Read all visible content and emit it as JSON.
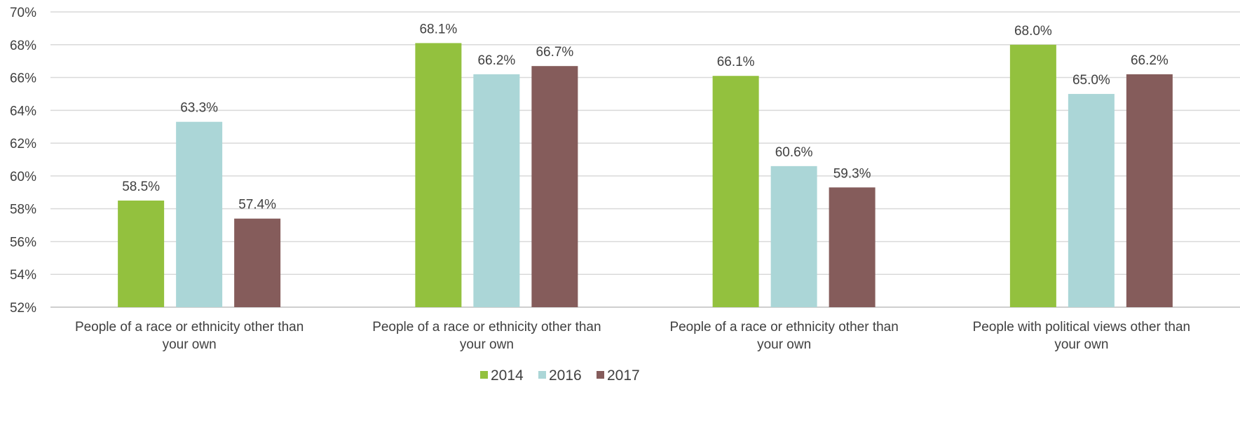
{
  "chart_data": {
    "type": "bar",
    "title": "",
    "xlabel": "",
    "ylabel": "",
    "ylim": [
      52,
      70
    ],
    "y_ticks": [
      52,
      54,
      56,
      58,
      60,
      62,
      64,
      66,
      68,
      70
    ],
    "y_tick_labels": [
      "52%",
      "54%",
      "56%",
      "58%",
      "60%",
      "62%",
      "64%",
      "66%",
      "68%",
      "70%"
    ],
    "grid": true,
    "legend_position": "bottom",
    "categories": [
      [
        "People of a race or ethnicity other than",
        "your own"
      ],
      [
        "People of a race or ethnicity other than",
        "your own"
      ],
      [
        "People of a race or ethnicity other than",
        "your own"
      ],
      [
        "People with political views other than",
        "your own"
      ]
    ],
    "series": [
      {
        "name": "2014",
        "color": "#93c13e",
        "values": [
          58.5,
          68.1,
          66.1,
          68.0
        ],
        "labels": [
          "58.5%",
          "68.1%",
          "66.1%",
          "68.0%"
        ]
      },
      {
        "name": "2016",
        "color": "#abd6d7",
        "values": [
          63.3,
          66.2,
          60.6,
          65.0
        ],
        "labels": [
          "63.3%",
          "66.2%",
          "60.6%",
          "65.0%"
        ]
      },
      {
        "name": "2017",
        "color": "#855c5b",
        "values": [
          57.4,
          66.7,
          59.3,
          66.2
        ],
        "labels": [
          "57.4%",
          "66.7%",
          "59.3%",
          "66.2%"
        ]
      }
    ]
  }
}
